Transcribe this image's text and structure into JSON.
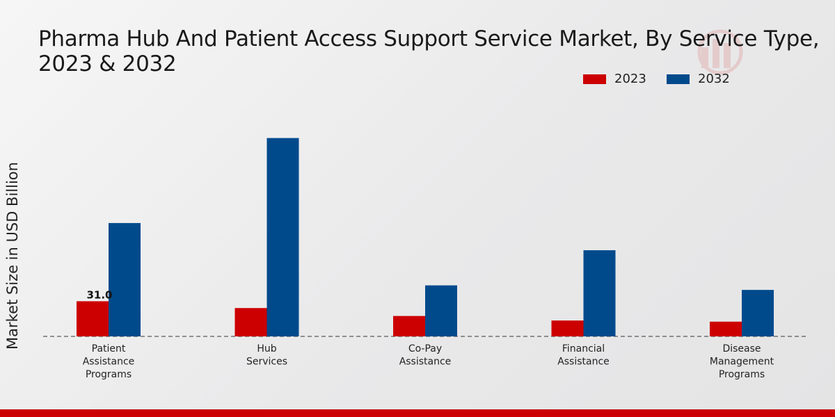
{
  "chart_data": {
    "type": "bar",
    "title": "Pharma Hub And Patient Access Support Service Market, By Service Type, 2023 & 2032",
    "xlabel": "",
    "ylabel": "Market Size in USD Billion",
    "categories": [
      "Patient Assistance Programs",
      "Hub Services",
      "Co-Pay Assistance",
      "Financial Assistance",
      "Disease Management Programs"
    ],
    "category_lines": [
      [
        "Patient",
        "Assistance",
        "Programs"
      ],
      [
        "Hub",
        "Services"
      ],
      [
        "Co-Pay",
        "Assistance"
      ],
      [
        "Financial",
        "Assistance"
      ],
      [
        "Disease",
        "Management",
        "Programs"
      ]
    ],
    "series": [
      {
        "name": "2023",
        "color": "#cc0000",
        "values": [
          31.0,
          25.0,
          18.0,
          14.0,
          13.0
        ]
      },
      {
        "name": "2032",
        "color": "#004a8c",
        "values": [
          100.0,
          175.0,
          45.0,
          76.0,
          41.0
        ]
      }
    ],
    "data_labels": [
      {
        "series": 0,
        "index": 0,
        "text": "31.0"
      }
    ],
    "ylim": [
      0,
      260
    ],
    "grid": false,
    "legend_position": "top-right"
  }
}
